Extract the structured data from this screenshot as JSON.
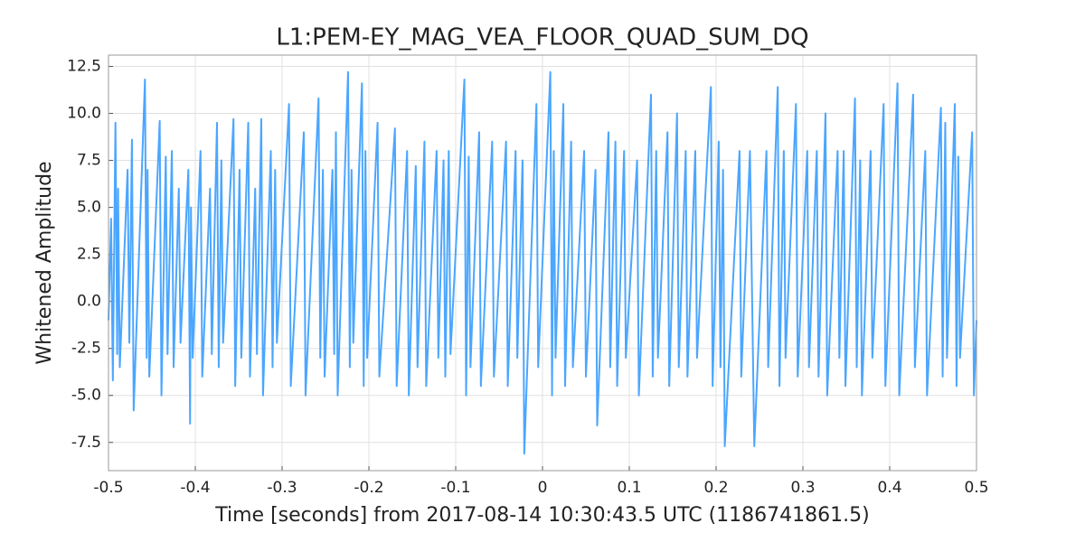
{
  "chart_data": {
    "type": "line",
    "title": "L1:PEM-EY_MAG_VEA_FLOOR_QUAD_SUM_DQ",
    "xlabel": "Time [seconds] from 2017-08-14 10:30:43.5 UTC (1186741861.5)",
    "ylabel": "Whitened Amplitude",
    "color": "#4ba6ff",
    "grid": true,
    "xlim": [
      -0.5,
      0.5
    ],
    "ylim": [
      -9.0,
      13.1
    ],
    "xticks": [
      -0.5,
      -0.4,
      -0.3,
      -0.2,
      -0.1,
      0,
      0.1,
      0.2,
      0.3,
      0.4,
      0.5
    ],
    "yticks": [
      -7.5,
      {
        "value": -5,
        "label": "-5.0"
      },
      -2.5,
      {
        "value": 0,
        "label": "0.0"
      },
      2.5,
      {
        "value": 5,
        "label": "5.0"
      },
      7.5,
      {
        "value": 10,
        "label": "10.0"
      },
      12.5
    ],
    "x": [
      -0.5,
      -0.497,
      -0.495,
      -0.492,
      -0.49,
      -0.489,
      -0.487,
      -0.478,
      -0.476,
      -0.473,
      -0.471,
      -0.458,
      -0.456,
      -0.455,
      -0.453,
      -0.441,
      -0.439,
      -0.434,
      -0.432,
      -0.427,
      -0.425,
      -0.419,
      -0.417,
      -0.408,
      -0.406,
      -0.405,
      -0.403,
      -0.394,
      -0.392,
      -0.383,
      -0.381,
      -0.375,
      -0.373,
      -0.37,
      -0.368,
      -0.356,
      -0.354,
      -0.349,
      -0.347,
      -0.339,
      -0.337,
      -0.331,
      -0.329,
      -0.324,
      -0.322,
      -0.313,
      -0.311,
      -0.308,
      -0.306,
      -0.292,
      -0.29,
      -0.275,
      -0.273,
      -0.258,
      -0.256,
      -0.253,
      -0.251,
      -0.242,
      -0.24,
      -0.238,
      -0.236,
      -0.224,
      -0.222,
      -0.22,
      -0.218,
      -0.208,
      -0.206,
      -0.204,
      -0.202,
      -0.19,
      -0.188,
      -0.17,
      -0.168,
      -0.156,
      -0.154,
      -0.146,
      -0.144,
      -0.136,
      -0.134,
      -0.122,
      -0.12,
      -0.114,
      -0.112,
      -0.108,
      -0.106,
      -0.09,
      -0.088,
      -0.085,
      -0.083,
      -0.073,
      -0.071,
      -0.058,
      -0.056,
      -0.042,
      -0.04,
      -0.031,
      -0.029,
      -0.023,
      -0.021,
      -0.007,
      -0.005,
      0.009,
      0.011,
      0.013,
      0.015,
      0.024,
      0.026,
      0.033,
      0.035,
      0.048,
      0.05,
      0.061,
      0.063,
      0.076,
      0.078,
      0.084,
      0.086,
      0.094,
      0.096,
      0.109,
      0.111,
      0.125,
      0.127,
      0.131,
      0.133,
      0.144,
      0.146,
      0.155,
      0.157,
      0.165,
      0.167,
      0.176,
      0.178,
      0.194,
      0.196,
      0.203,
      0.205,
      0.208,
      0.21,
      0.227,
      0.229,
      0.239,
      0.244,
      0.258,
      0.26,
      0.271,
      0.273,
      0.278,
      0.28,
      0.292,
      0.294,
      0.305,
      0.307,
      0.316,
      0.318,
      0.326,
      0.328,
      0.34,
      0.342,
      0.347,
      0.349,
      0.36,
      0.362,
      0.366,
      0.368,
      0.378,
      0.38,
      0.393,
      0.395,
      0.409,
      0.411,
      0.427,
      0.429,
      0.441,
      0.443,
      0.459,
      0.461,
      0.464,
      0.466,
      0.475,
      0.477,
      0.479,
      0.481,
      0.495,
      0.497,
      0.5
    ],
    "values": [
      -1.0,
      4.4,
      -4.2,
      9.5,
      -2.8,
      6.0,
      -3.5,
      7.0,
      -2.2,
      8.6,
      -5.8,
      11.8,
      -3.0,
      7.0,
      -4.0,
      9.6,
      -5.0,
      7.7,
      -2.8,
      8.0,
      -3.5,
      6.0,
      -2.2,
      7.0,
      -6.5,
      5.0,
      -3.0,
      8.0,
      -4.0,
      6.0,
      -2.8,
      9.5,
      -3.5,
      7.5,
      -2.2,
      9.7,
      -4.5,
      7.0,
      -3.0,
      9.5,
      -4.0,
      6.0,
      -2.8,
      9.7,
      -5.0,
      8.0,
      -3.5,
      7.0,
      -2.2,
      10.5,
      -4.5,
      9.0,
      -5.0,
      10.8,
      -3.0,
      7.0,
      -4.0,
      7.0,
      -2.8,
      9.0,
      -5.0,
      12.2,
      -3.5,
      7.0,
      -2.2,
      11.6,
      -4.5,
      8.0,
      -3.0,
      9.5,
      -4.0,
      9.2,
      -4.5,
      8.0,
      -5.0,
      7.2,
      -3.5,
      8.5,
      -4.5,
      8.0,
      -3.0,
      7.5,
      -4.0,
      8.0,
      -2.8,
      11.8,
      -5.0,
      7.7,
      -3.5,
      9.0,
      -4.5,
      8.5,
      -4.0,
      8.5,
      -4.5,
      8.0,
      -3.0,
      7.5,
      -8.1,
      10.5,
      -3.5,
      12.2,
      -5.0,
      8.0,
      -3.0,
      10.5,
      -4.5,
      8.5,
      -3.5,
      8.0,
      -4.0,
      7.0,
      -6.6,
      9.0,
      -3.5,
      8.5,
      -4.5,
      8.0,
      -3.0,
      7.5,
      -5.0,
      11.0,
      -4.0,
      8.0,
      -3.0,
      9.0,
      -4.5,
      10.0,
      -3.5,
      8.0,
      -4.0,
      8.0,
      -3.0,
      11.4,
      -4.5,
      8.5,
      -3.5,
      7.0,
      -7.7,
      8.0,
      -4.0,
      8.0,
      -7.7,
      8.0,
      -3.5,
      11.4,
      -4.5,
      8.0,
      -3.0,
      10.5,
      -4.0,
      8.0,
      -3.5,
      8.0,
      -4.0,
      10.0,
      -5.0,
      8.0,
      -3.0,
      8.0,
      -4.5,
      10.8,
      -3.5,
      7.5,
      -5.0,
      8.0,
      -3.0,
      10.5,
      -4.5,
      11.6,
      -5.0,
      11.0,
      -3.5,
      8.0,
      -5.0,
      10.3,
      -4.0,
      9.5,
      -3.0,
      10.5,
      -4.5,
      7.7,
      -3.0,
      9.0,
      -5.0,
      -1.0
    ]
  }
}
